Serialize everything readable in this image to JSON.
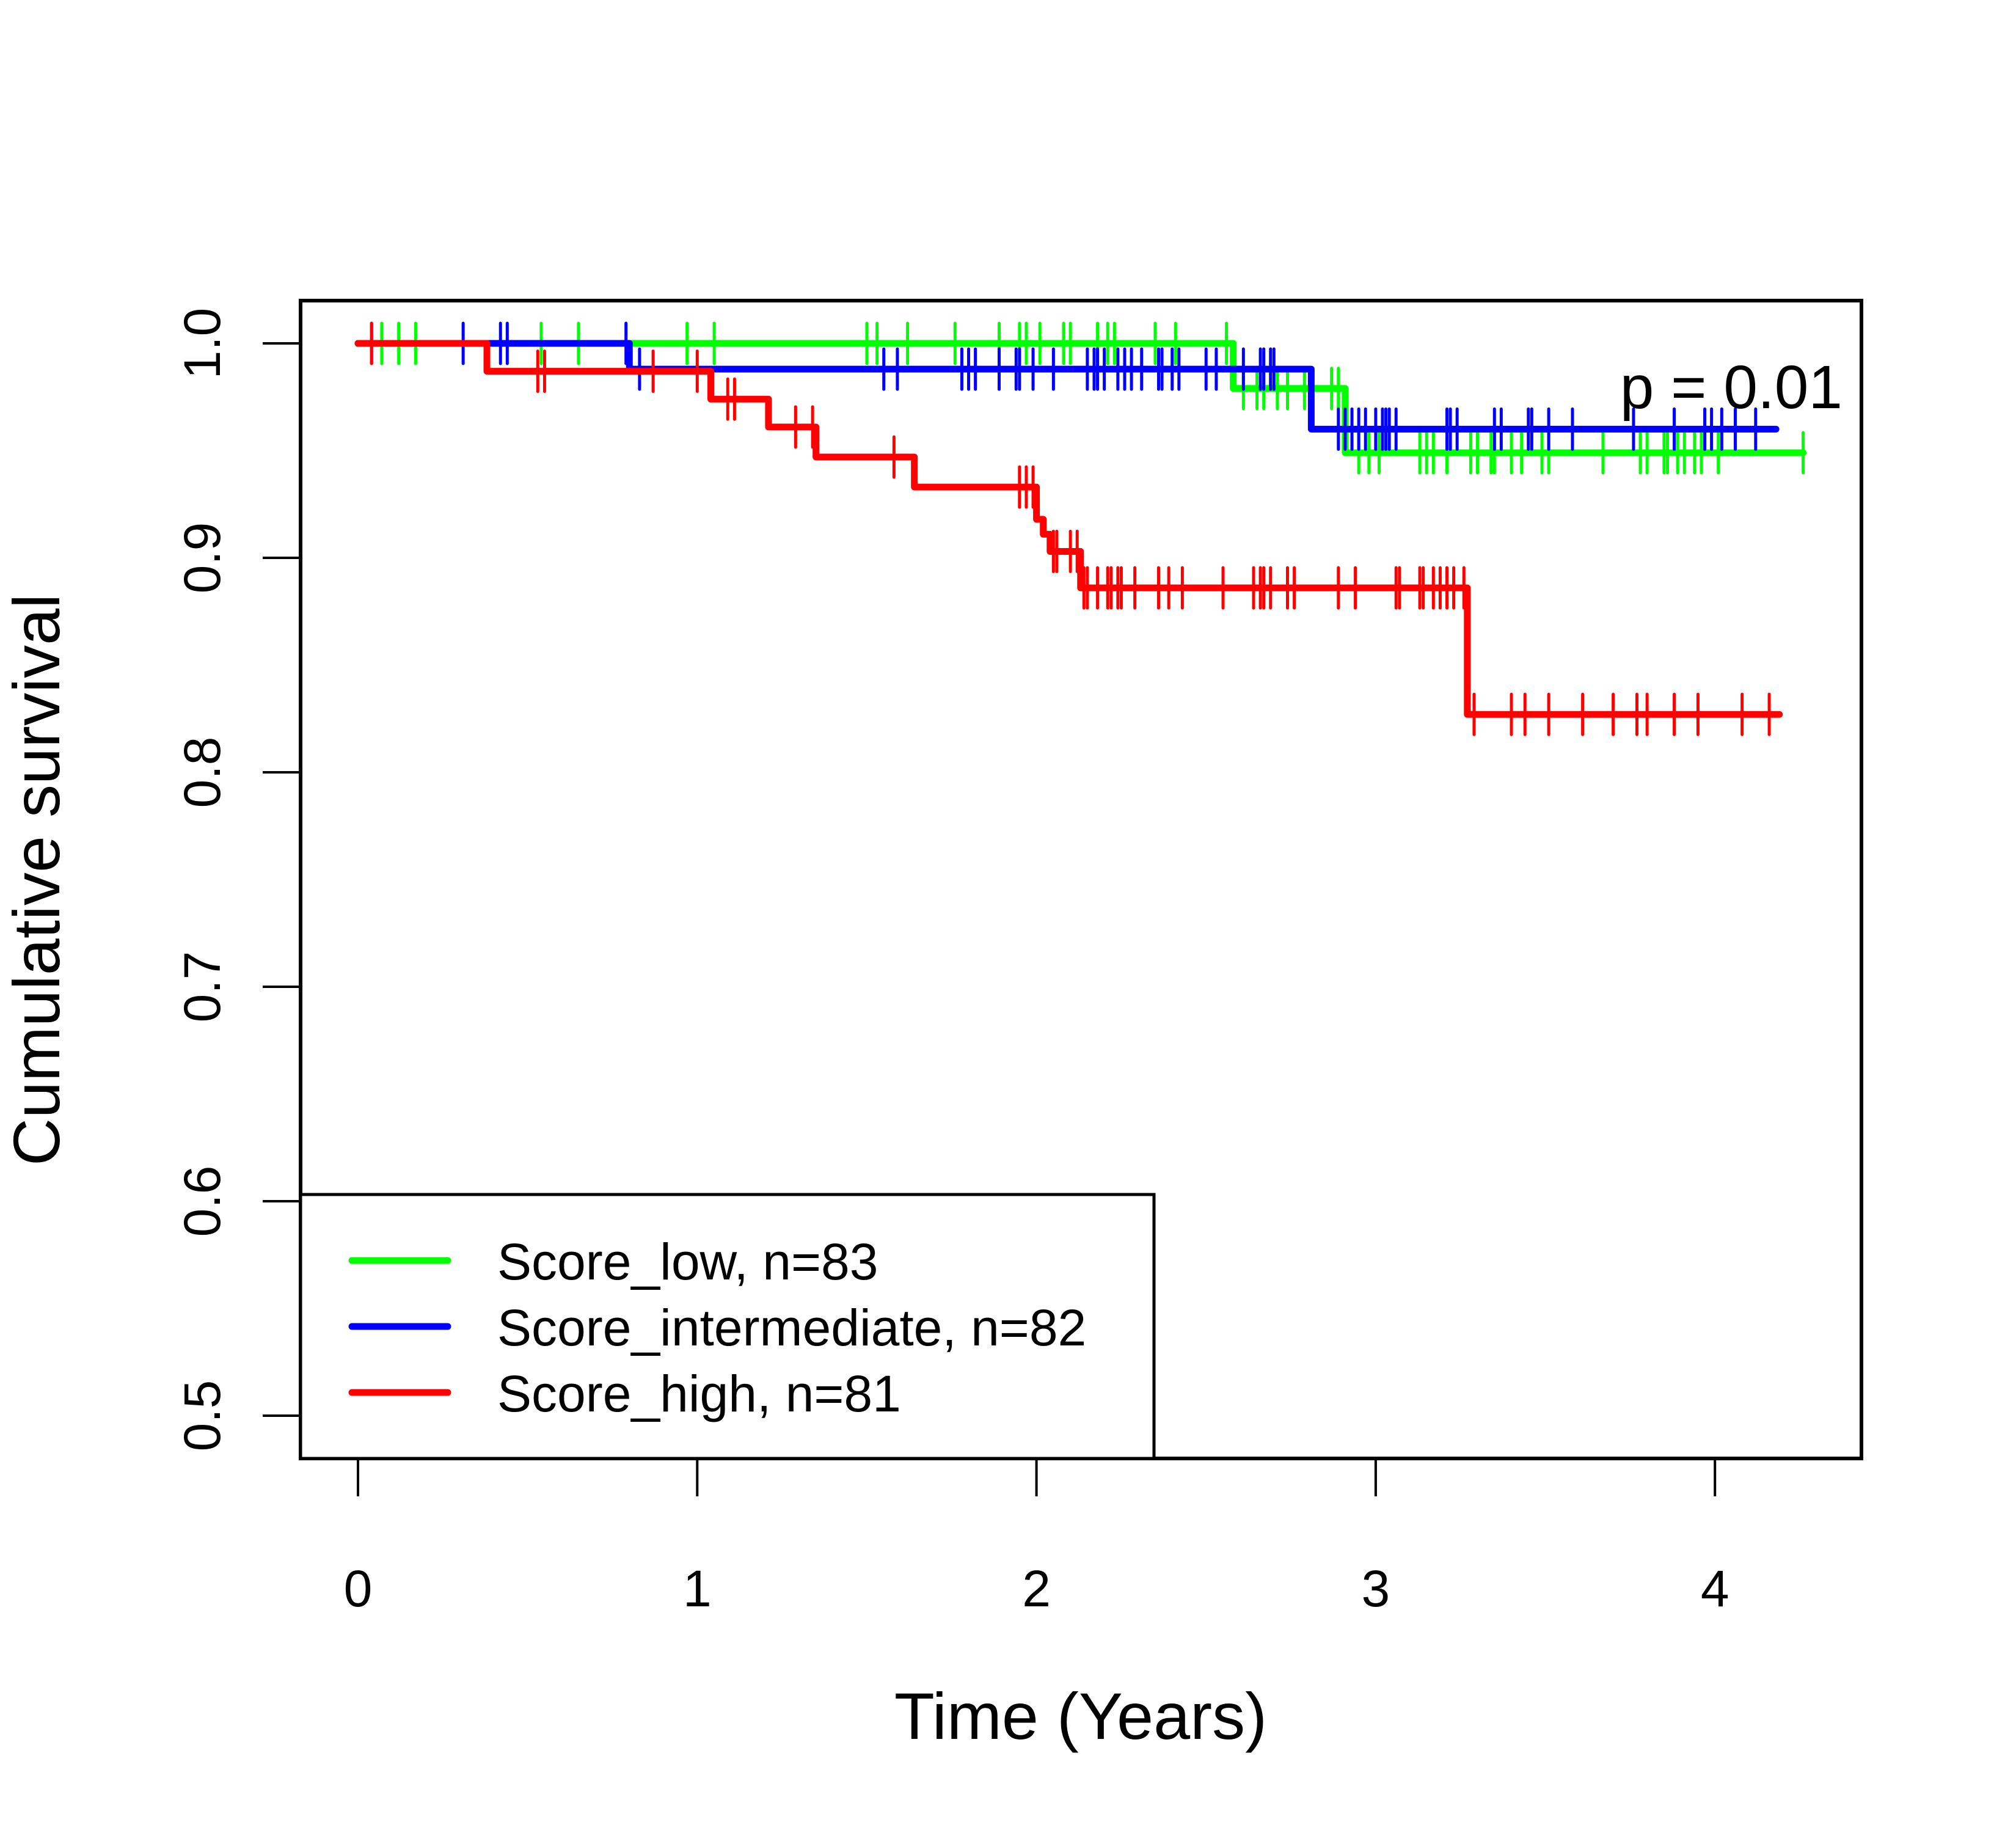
{
  "chart_data": {
    "type": "line",
    "subtype": "kaplan-meier step survival curves",
    "title": "",
    "xlabel": "Time (Years)",
    "ylabel": "Cumulative survival",
    "xlim": [
      -0.17,
      4.43
    ],
    "ylim": [
      0.49,
      1.01
    ],
    "x_ticks": [
      0,
      1,
      2,
      3,
      4
    ],
    "x_tick_labels": [
      "0",
      "1",
      "2",
      "3",
      "4"
    ],
    "y_ticks": [
      0.5,
      0.6,
      0.7,
      0.8,
      0.9,
      1.0
    ],
    "y_tick_labels": [
      "0.5",
      "0.6",
      "0.7",
      "0.8",
      "0.9",
      "1.0"
    ],
    "grid": false,
    "annotation": "p = 0.01",
    "legend": {
      "placement": "bottom-left",
      "entries": [
        "Score_low, n=83",
        "Score_intermediate, n=82",
        "Score_high, n=81"
      ]
    },
    "series": [
      {
        "name": "Score_low",
        "n": 83,
        "color": "#00ff00",
        "steps": [
          [
            0,
            1.0
          ],
          [
            2.58,
            0.979
          ],
          [
            2.91,
            0.949
          ]
        ],
        "end_time": 4.26,
        "censor_times": [
          0.07,
          0.12,
          0.17,
          0.54,
          0.65,
          0.97,
          1.05,
          1.5,
          1.53,
          1.62,
          1.76,
          1.89,
          1.95,
          1.97,
          2.01,
          2.08,
          2.1,
          2.18,
          2.21,
          2.23,
          2.35,
          2.41,
          2.56,
          2.61,
          2.65,
          2.67,
          2.71,
          2.74,
          2.79,
          2.87,
          2.89,
          2.95,
          2.98,
          3.01,
          3.13,
          3.15,
          3.17,
          3.21,
          3.28,
          3.3,
          3.34,
          3.35,
          3.4,
          3.43,
          3.49,
          3.51,
          3.67,
          3.78,
          3.8,
          3.85,
          3.86,
          3.89,
          3.91,
          3.94,
          3.96,
          4.01,
          4.26
        ]
      },
      {
        "name": "Score_intermediate",
        "n": 82,
        "color": "#0000ff",
        "steps": [
          [
            0,
            1.0
          ],
          [
            0.8,
            0.988
          ],
          [
            2.81,
            0.96
          ]
        ],
        "end_time": 4.18,
        "censor_times": [
          0.04,
          0.31,
          0.42,
          0.44,
          0.79,
          0.83,
          1.55,
          1.59,
          1.78,
          1.8,
          1.82,
          1.89,
          1.94,
          1.95,
          1.99,
          2.05,
          2.15,
          2.17,
          2.18,
          2.2,
          2.24,
          2.26,
          2.28,
          2.31,
          2.36,
          2.37,
          2.4,
          2.42,
          2.5,
          2.53,
          2.61,
          2.66,
          2.67,
          2.69,
          2.7,
          2.89,
          2.91,
          2.93,
          2.95,
          2.97,
          3.0,
          3.02,
          3.03,
          3.04,
          3.06,
          3.21,
          3.22,
          3.24,
          3.35,
          3.37,
          3.45,
          3.46,
          3.51,
          3.58,
          3.76,
          3.88,
          3.97,
          3.99,
          4.02,
          4.06,
          4.12
        ]
      },
      {
        "name": "Score_high",
        "n": 81,
        "color": "#ff0000",
        "steps": [
          [
            0,
            1.0
          ],
          [
            0.38,
            0.987
          ],
          [
            1.04,
            0.974
          ],
          [
            1.21,
            0.961
          ],
          [
            1.35,
            0.947
          ],
          [
            1.64,
            0.933
          ],
          [
            2.0,
            0.918
          ],
          [
            2.02,
            0.911
          ],
          [
            2.04,
            0.903
          ],
          [
            2.13,
            0.886
          ],
          [
            3.27,
            0.827
          ]
        ],
        "end_time": 4.19,
        "censor_times": [
          0.04,
          0.53,
          0.55,
          0.87,
          1.0,
          1.09,
          1.11,
          1.29,
          1.34,
          1.58,
          1.95,
          1.97,
          1.99,
          2.05,
          2.06,
          2.1,
          2.12,
          2.14,
          2.15,
          2.18,
          2.21,
          2.22,
          2.24,
          2.25,
          2.29,
          2.36,
          2.39,
          2.43,
          2.55,
          2.64,
          2.66,
          2.67,
          2.69,
          2.74,
          2.76,
          2.89,
          2.94,
          3.06,
          3.07,
          3.13,
          3.14,
          3.17,
          3.19,
          3.21,
          3.23,
          3.26,
          3.29,
          3.4,
          3.44,
          3.51,
          3.61,
          3.7,
          3.77,
          3.8,
          3.88,
          3.95,
          4.08,
          4.16
        ]
      }
    ]
  }
}
